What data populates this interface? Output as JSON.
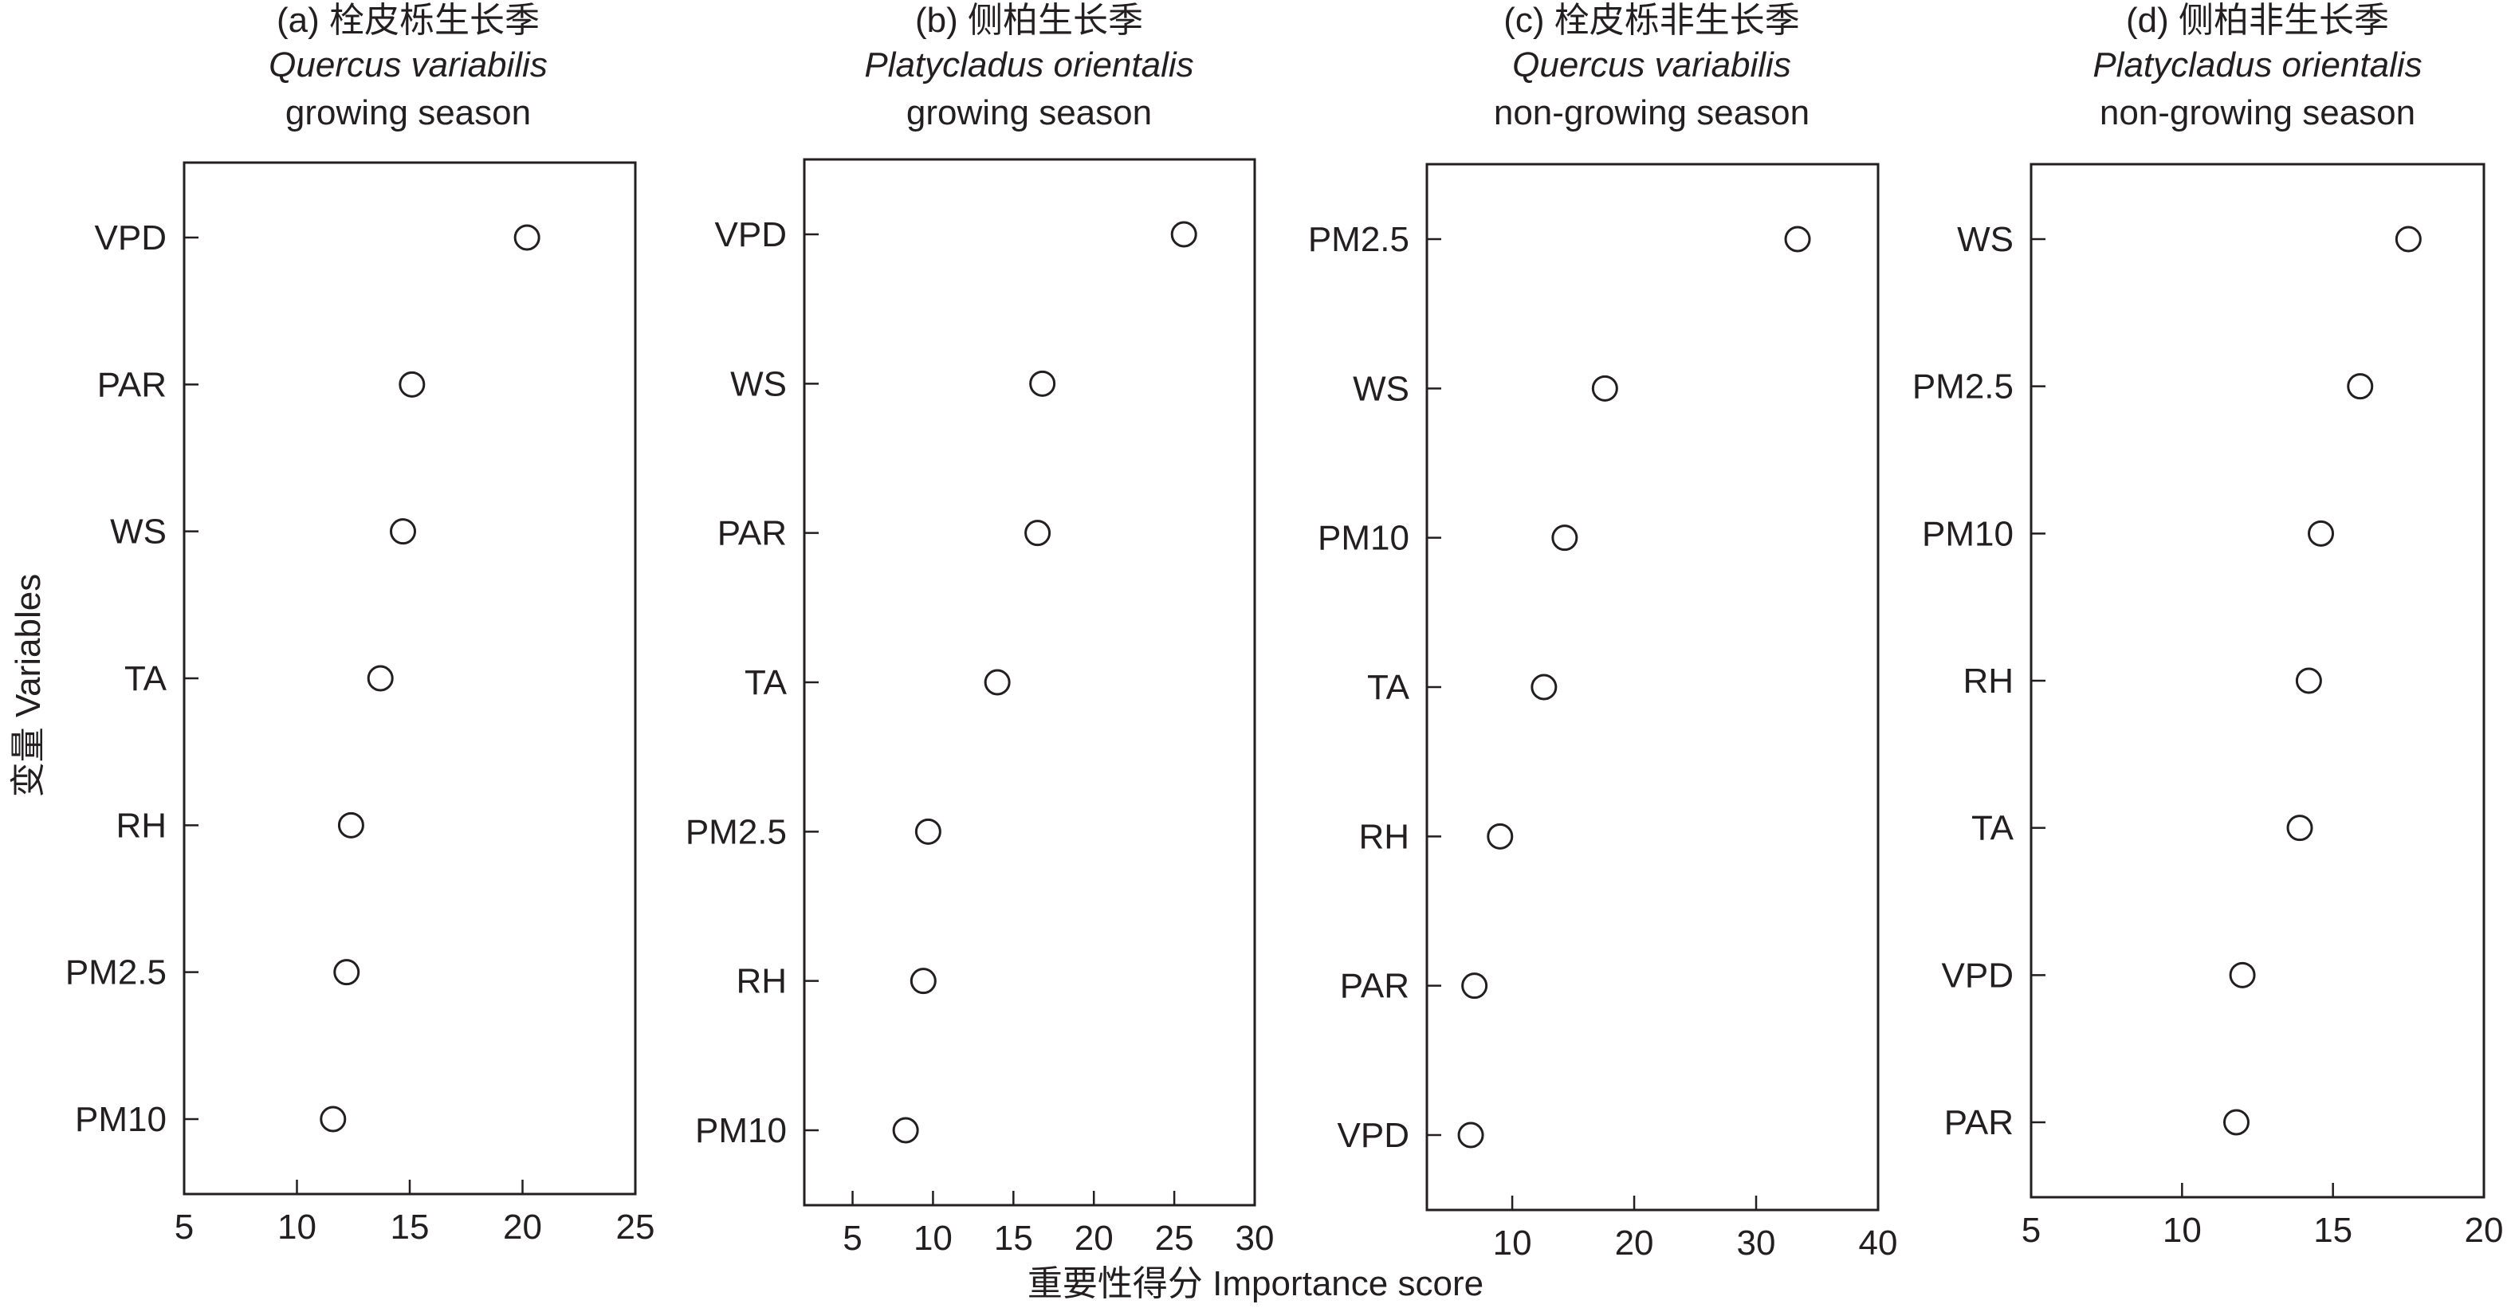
{
  "colors": {
    "ink": "#231f20",
    "background": "#ffffff",
    "marker_fill": "#ffffff"
  },
  "figure": {
    "ylabel": "变量 Variables",
    "xlabel": "重要性得分 Importance score"
  },
  "chart_data": [
    {
      "type": "scatter",
      "title_lines": [
        "(a) 栓皮栎生长季",
        "Quercus variabilis",
        "growing season"
      ],
      "categories": [
        "VPD",
        "PAR",
        "WS",
        "TA",
        "RH",
        "PM2.5",
        "PM10"
      ],
      "values": [
        20.2,
        15.1,
        14.7,
        13.7,
        12.4,
        12.2,
        11.6
      ],
      "xlim": [
        5,
        25
      ],
      "xticks": [
        5,
        10,
        15,
        20,
        25
      ],
      "marker": "open-circle",
      "grid": false
    },
    {
      "type": "scatter",
      "title_lines": [
        "(b) 侧柏生长季",
        "Platycladus orientalis",
        "growing season"
      ],
      "categories": [
        "VPD",
        "WS",
        "PAR",
        "TA",
        "PM2.5",
        "RH",
        "PM10"
      ],
      "values": [
        25.6,
        16.8,
        16.5,
        14.0,
        9.7,
        9.4,
        8.3
      ],
      "xlim": [
        2,
        30
      ],
      "xticks": [
        5,
        10,
        15,
        20,
        25,
        30
      ],
      "marker": "open-circle",
      "grid": false
    },
    {
      "type": "scatter",
      "title_lines": [
        "(c) 栓皮栎非生长季",
        "Quercus variabilis",
        "non-growing season"
      ],
      "categories": [
        "PM2.5",
        "WS",
        "PM10",
        "TA",
        "RH",
        "PAR",
        "VPD"
      ],
      "values": [
        33.4,
        17.6,
        14.3,
        12.6,
        9.0,
        6.9,
        6.6
      ],
      "xlim": [
        3,
        40
      ],
      "xticks": [
        10,
        20,
        30,
        40
      ],
      "marker": "open-circle",
      "grid": false
    },
    {
      "type": "scatter",
      "title_lines": [
        "(d) 侧柏非生长季",
        "Platycladus orientalis",
        "non-growing season"
      ],
      "categories": [
        "WS",
        "PM2.5",
        "PM10",
        "RH",
        "TA",
        "VPD",
        "PAR"
      ],
      "values": [
        17.5,
        15.9,
        14.6,
        14.2,
        13.9,
        12.0,
        11.8
      ],
      "xlim": [
        5,
        20
      ],
      "xticks": [
        5,
        10,
        15,
        20
      ],
      "marker": "open-circle",
      "grid": false
    }
  ]
}
